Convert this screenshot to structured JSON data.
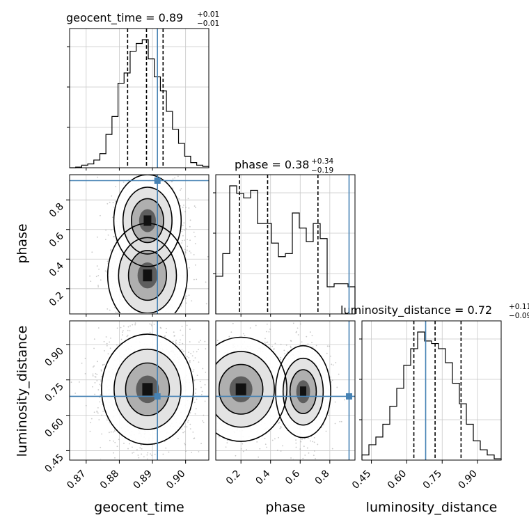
{
  "chart_data": {
    "type": "corner",
    "truth_color": "#4682b4",
    "parameters": [
      {
        "name": "geocent_time",
        "truth": 0.8915,
        "range": [
          0.865,
          0.907
        ],
        "median": 0.89,
        "title": "geocent_time = 0.89",
        "plus": "+0.01",
        "minus": "−0.01",
        "quantiles": [
          0.8825,
          0.8882,
          0.8932
        ],
        "ticks": [
          0.87,
          0.88,
          0.89,
          0.9
        ],
        "tick_labels": [
          "0.87",
          "0.88",
          "0.89",
          "0.90"
        ]
      },
      {
        "name": "phase",
        "truth": 0.93,
        "range": [
          0.03,
          0.97
        ],
        "median": 0.38,
        "title": "phase = 0.38",
        "plus": "+0.34",
        "minus": "−0.19",
        "quantiles": [
          0.19,
          0.38,
          0.72
        ],
        "ticks": [
          0.2,
          0.4,
          0.6,
          0.8
        ],
        "tick_labels": [
          "0.2",
          "0.4",
          "0.6",
          "0.8"
        ]
      },
      {
        "name": "luminosity_distance",
        "truth": 0.68,
        "range": [
          0.41,
          1.0
        ],
        "median": 0.72,
        "title": "luminosity_distance = 0.72",
        "plus": "+0.11",
        "minus": "−0.09",
        "quantiles": [
          0.63,
          0.72,
          0.83
        ],
        "ticks": [
          0.45,
          0.6,
          0.75,
          0.9
        ],
        "tick_labels": [
          "0.45",
          "0.60",
          "0.75",
          "0.90"
        ]
      }
    ],
    "hist_1d": {
      "geocent_time": [
        0,
        0.5,
        2,
        3,
        6,
        11,
        26,
        40,
        66,
        74,
        91,
        97,
        100,
        85,
        71,
        60,
        44,
        30,
        19,
        9,
        4,
        2,
        1
      ],
      "phase": [
        25,
        40,
        85,
        80,
        77,
        82,
        60,
        60,
        47,
        38,
        40,
        67,
        57,
        48,
        60,
        50,
        18,
        20,
        20,
        18
      ],
      "luminosity_distance": [
        4,
        12,
        18,
        28,
        42,
        56,
        74,
        87,
        100,
        93,
        91,
        87,
        76,
        60,
        44,
        28,
        15,
        8,
        4,
        1
      ]
    },
    "xlabel": [
      "geocent_time",
      "phase",
      "luminosity_distance"
    ],
    "ylabel": [
      "",
      "phase",
      "luminosity_distance"
    ],
    "grid": true
  }
}
